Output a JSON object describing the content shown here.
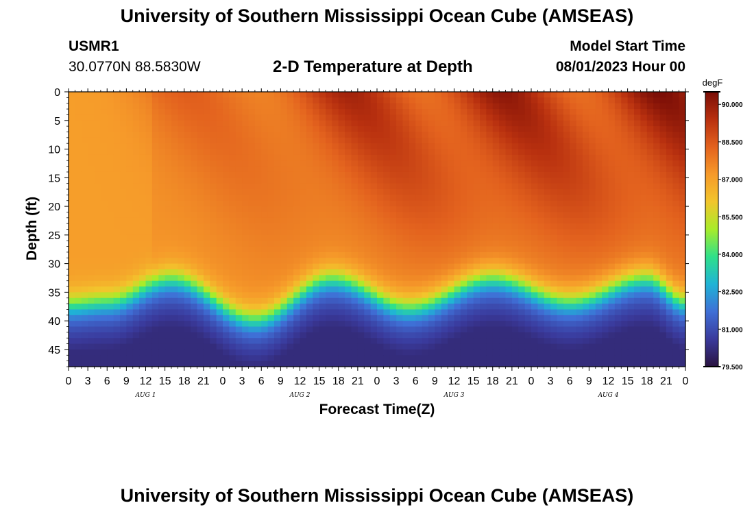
{
  "header": {
    "title": "University of Southern Mississippi Ocean Cube (AMSEAS)",
    "station_id": "USMR1",
    "station_coords": "30.0770N  88.5830W",
    "subtitle": "2-D Temperature at Depth",
    "model_start_label": "Model Start Time",
    "model_start_value": "08/01/2023 Hour 00"
  },
  "footer": {
    "title": "University of Southern Mississippi Ocean Cube (AMSEAS)"
  },
  "chart_data": {
    "type": "heatmap",
    "title": "2-D Temperature at Depth",
    "xlabel": "Forecast Time(Z)",
    "ylabel": "Depth (ft)",
    "x_range_hours": [
      0,
      96
    ],
    "x_tick_labels": [
      "0",
      "3",
      "6",
      "9",
      "12",
      "15",
      "18",
      "21",
      "0",
      "3",
      "6",
      "9",
      "12",
      "15",
      "18",
      "21",
      "0",
      "3",
      "6",
      "9",
      "12",
      "15",
      "18",
      "21",
      "0",
      "3",
      "6",
      "9",
      "12",
      "15",
      "18",
      "21",
      "0"
    ],
    "x_tick_hours": [
      0,
      3,
      6,
      9,
      12,
      15,
      18,
      21,
      24,
      27,
      30,
      33,
      36,
      39,
      42,
      45,
      48,
      51,
      54,
      57,
      60,
      63,
      66,
      69,
      72,
      75,
      78,
      81,
      84,
      87,
      90,
      93,
      96
    ],
    "day_labels": [
      {
        "label": "AUG 1",
        "hour": 12
      },
      {
        "label": "AUG 2",
        "hour": 36
      },
      {
        "label": "AUG 3",
        "hour": 60
      },
      {
        "label": "AUG 4",
        "hour": 84
      }
    ],
    "y_range_ft": [
      0,
      48
    ],
    "y_tick_labels": [
      "0",
      "5",
      "10",
      "15",
      "20",
      "25",
      "30",
      "35",
      "40",
      "45"
    ],
    "y_ticks_ft": [
      0,
      5,
      10,
      15,
      20,
      25,
      30,
      35,
      40,
      45
    ],
    "colorbar": {
      "units": "degF",
      "min": 79.5,
      "max": 90.5,
      "tick_labels": [
        "90.000",
        "88.500",
        "87.000",
        "85.500",
        "84.000",
        "82.500",
        "81.000",
        "79.500"
      ],
      "tick_values": [
        90.0,
        88.5,
        87.0,
        85.5,
        84.0,
        82.5,
        81.0,
        79.5
      ],
      "colors": [
        "#2a1340",
        "#3a3a9c",
        "#3f6fd6",
        "#1fb3d6",
        "#2fe08a",
        "#a8ec2a",
        "#f2c52c",
        "#f69a2a",
        "#e3621e",
        "#b8300f",
        "#7a0d06"
      ]
    },
    "thermocline": {
      "description": "depth (ft) of the sharp warm-to-cold transition, oscillating with tide",
      "hours": [
        0,
        6,
        16,
        29,
        41,
        53,
        66,
        78,
        90,
        96
      ],
      "depth_ft": [
        35.5,
        35,
        31,
        38,
        31,
        36,
        31,
        35,
        31,
        35
      ]
    },
    "warm_bands": [
      {
        "surface_hour_start": 15,
        "surface_hour_end": 22,
        "peak_degF": 88.4
      },
      {
        "surface_hour_start": 40,
        "surface_hour_end": 47,
        "peak_degF": 89.8
      },
      {
        "surface_hour_start": 64,
        "surface_hour_end": 71,
        "peak_degF": 90.2
      },
      {
        "surface_hour_start": 88,
        "surface_hour_end": 96,
        "peak_degF": 90.5
      }
    ],
    "surface_layer_degF": 87.3,
    "bottom_layer_degF": 80.2
  }
}
